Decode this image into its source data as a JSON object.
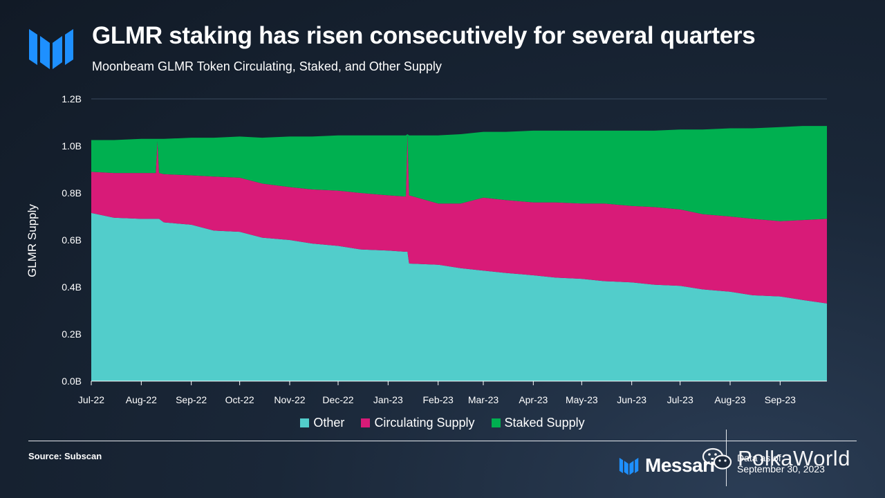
{
  "header": {
    "title": "GLMR staking has risen consecutively for several quarters",
    "subtitle": "Moonbeam GLMR Token Circulating, Staked, and Other Supply",
    "logo_icon": "messari-logo-icon"
  },
  "footer": {
    "source": "Source: Subscan",
    "brand": "Messari",
    "date_line1": "Data as of",
    "date_line2": "September 30, 2023",
    "watermark_text": "PolkaWorld",
    "watermark_icon": "wechat-icon"
  },
  "colors": {
    "other": "#52cdcb",
    "circulating": "#d81b78",
    "staked": "#00b050",
    "brand_blue": "#1e90ff"
  },
  "chart_data": {
    "type": "area",
    "stacked": true,
    "title": "GLMR staking has risen consecutively for several quarters",
    "subtitle": "Moonbeam GLMR Token Circulating, Staked, and Other Supply",
    "xlabel": "",
    "ylabel": "GLMR Supply",
    "ylim": [
      0,
      1.2
    ],
    "y_unit": "B",
    "y_ticks": [
      "0.0B",
      "0.2B",
      "0.4B",
      "0.6B",
      "0.8B",
      "1.0B",
      "1.2B"
    ],
    "x_ticks": [
      "Jul-22",
      "Aug-22",
      "Sep-22",
      "Oct-22",
      "Nov-22",
      "Dec-22",
      "Jan-23",
      "Feb-23",
      "Mar-23",
      "Apr-23",
      "May-23",
      "Jun-23",
      "Jul-23",
      "Aug-23",
      "Sep-23"
    ],
    "grid": "horizontal",
    "legend_position": "bottom",
    "x": [
      "2022-07-01",
      "2022-07-15",
      "2022-08-01",
      "2022-08-10",
      "2022-08-11",
      "2022-08-12",
      "2022-08-15",
      "2022-09-01",
      "2022-09-15",
      "2022-10-01",
      "2022-10-15",
      "2022-11-01",
      "2022-11-15",
      "2022-12-01",
      "2022-12-15",
      "2023-01-01",
      "2023-01-12",
      "2023-01-13",
      "2023-01-14",
      "2023-02-01",
      "2023-02-15",
      "2023-03-01",
      "2023-03-15",
      "2023-04-01",
      "2023-04-15",
      "2023-05-01",
      "2023-05-15",
      "2023-06-01",
      "2023-06-15",
      "2023-07-01",
      "2023-07-15",
      "2023-08-01",
      "2023-08-15",
      "2023-09-01",
      "2023-09-15",
      "2023-09-30"
    ],
    "series": [
      {
        "name": "Other",
        "color": "#52cdcb",
        "values": [
          0.715,
          0.695,
          0.69,
          0.69,
          0.69,
          0.69,
          0.675,
          0.665,
          0.64,
          0.635,
          0.61,
          0.6,
          0.585,
          0.575,
          0.56,
          0.555,
          0.55,
          0.55,
          0.5,
          0.495,
          0.48,
          0.47,
          0.46,
          0.45,
          0.44,
          0.435,
          0.425,
          0.42,
          0.41,
          0.405,
          0.39,
          0.38,
          0.365,
          0.36,
          0.345,
          0.33
        ]
      },
      {
        "name": "Circulating Supply",
        "color": "#d81b78",
        "values": [
          0.175,
          0.19,
          0.195,
          0.195,
          0.33,
          0.195,
          0.205,
          0.21,
          0.23,
          0.23,
          0.23,
          0.225,
          0.23,
          0.235,
          0.24,
          0.235,
          0.235,
          0.5,
          0.29,
          0.26,
          0.275,
          0.31,
          0.31,
          0.31,
          0.32,
          0.32,
          0.33,
          0.325,
          0.33,
          0.325,
          0.32,
          0.32,
          0.325,
          0.32,
          0.34,
          0.36
        ]
      },
      {
        "name": "Staked Supply",
        "color": "#00b050",
        "values": [
          0.135,
          0.14,
          0.145,
          0.145,
          0.01,
          0.145,
          0.15,
          0.16,
          0.165,
          0.175,
          0.195,
          0.215,
          0.225,
          0.235,
          0.245,
          0.255,
          0.26,
          0.0,
          0.255,
          0.29,
          0.295,
          0.28,
          0.29,
          0.305,
          0.305,
          0.31,
          0.31,
          0.32,
          0.325,
          0.34,
          0.36,
          0.375,
          0.385,
          0.4,
          0.4,
          0.395
        ]
      }
    ]
  }
}
